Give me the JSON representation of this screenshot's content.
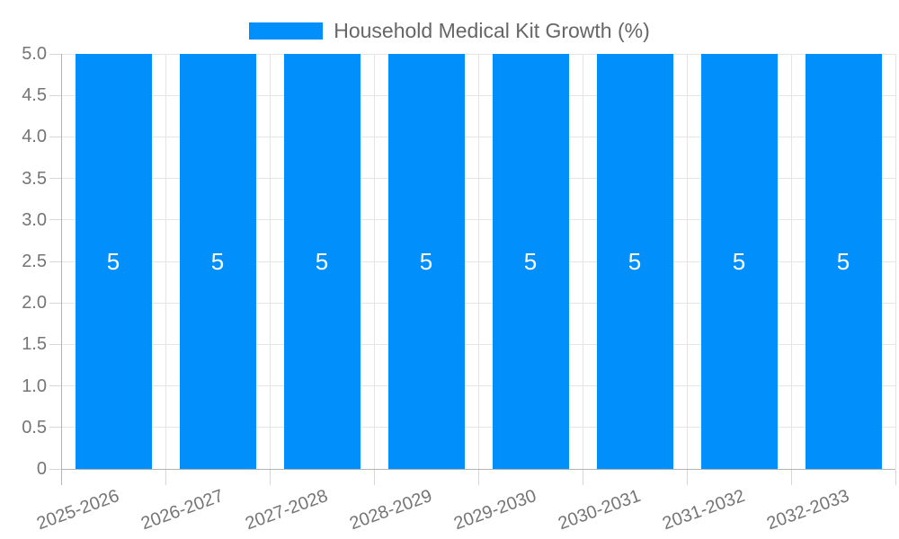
{
  "legend": {
    "label": "Household Medical Kit Growth (%)",
    "swatch_color": "#008FFB"
  },
  "chart_data": {
    "type": "bar",
    "title": "Household Medical Kit Growth (%)",
    "categories": [
      "2025-2026",
      "2026-2027",
      "2027-2028",
      "2028-2029",
      "2029-2030",
      "2030-2031",
      "2031-2032",
      "2032-2033"
    ],
    "values": [
      5,
      5,
      5,
      5,
      5,
      5,
      5,
      5
    ],
    "data_labels": [
      "5",
      "5",
      "5",
      "5",
      "5",
      "5",
      "5",
      "5"
    ],
    "series": [
      {
        "name": "Household Medical Kit Growth (%)",
        "values": [
          5,
          5,
          5,
          5,
          5,
          5,
          5,
          5
        ]
      }
    ],
    "xlabel": "",
    "ylabel": "",
    "ylim": [
      0,
      5
    ],
    "yticks": [
      {
        "value": 5,
        "label": "5.0"
      },
      {
        "value": 4.5,
        "label": "4.5"
      },
      {
        "value": 4,
        "label": "4.0"
      },
      {
        "value": 3.5,
        "label": "3.5"
      },
      {
        "value": 3,
        "label": "3.0"
      },
      {
        "value": 2.5,
        "label": "2.5"
      },
      {
        "value": 2,
        "label": "2.0"
      },
      {
        "value": 1.5,
        "label": "1.5"
      },
      {
        "value": 1,
        "label": "1.0"
      },
      {
        "value": 0.5,
        "label": "0.5"
      },
      {
        "value": 0,
        "label": "0"
      }
    ],
    "grid": true,
    "legend_position": "top",
    "x_label_rotation_deg": -20,
    "colors": {
      "bar": "#008FFB",
      "grid": "#e5e5e5",
      "axis": "#b3b3b3",
      "tick": "#d6d6d6",
      "axis_label": "#757575",
      "legend_text": "#666666",
      "data_label": "#ffffff"
    }
  }
}
